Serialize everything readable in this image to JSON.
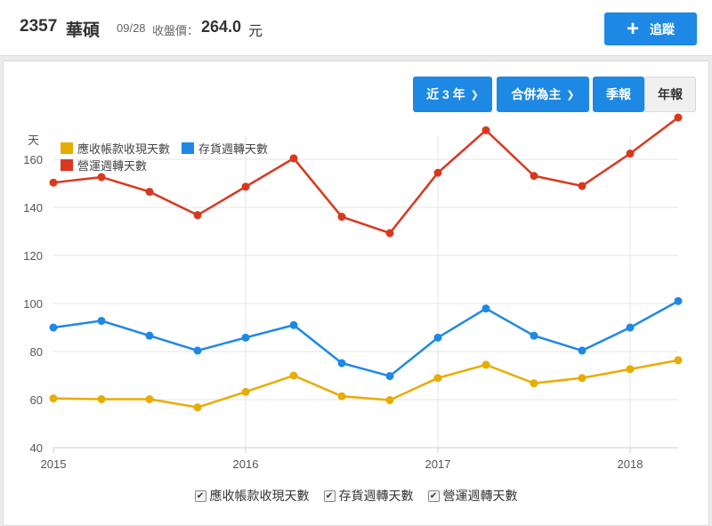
{
  "header": {
    "stock_id": "2357",
    "stock_name": "華碩",
    "close_date": "09/28",
    "close_label": "收盤價：",
    "close_price": "264.0",
    "close_unit": "元",
    "track_label": "追蹤",
    "track_icon": "plus-icon"
  },
  "controls": {
    "range_label": "近 3 年",
    "scope_label": "合併為主",
    "season_label": "季報",
    "year_label": "年報",
    "chevron_icon": "chevron-down-icon"
  },
  "colors": {
    "accent": "#1e88e5",
    "receivable": "#e8ac00",
    "inventory": "#1e88e5",
    "operating": "#d9381e"
  },
  "chart_data": {
    "type": "line",
    "ylabel": "天",
    "ylim": [
      40,
      170
    ],
    "yticks": [
      40,
      60,
      80,
      100,
      120,
      140,
      160
    ],
    "x_tick_labels": [
      "2015",
      "2016",
      "2017",
      "2018"
    ],
    "x": [
      "2015Q1",
      "2015Q2",
      "2015Q3",
      "2015Q4",
      "2016Q1",
      "2016Q2",
      "2016Q3",
      "2016Q4",
      "2017Q1",
      "2017Q2",
      "2017Q3",
      "2017Q4",
      "2018Q1",
      "2018Q2"
    ],
    "grid": true,
    "legend_position": "top-left",
    "series": [
      {
        "name": "應收帳款收現天數",
        "color": "#e8ac00",
        "values": [
          60.5,
          60.2,
          60.2,
          56.8,
          63.2,
          70.0,
          61.4,
          59.8,
          69.0,
          74.5,
          66.8,
          69.0,
          72.7,
          76.4
        ]
      },
      {
        "name": "存貨週轉天數",
        "color": "#1e88e5",
        "values": [
          90.0,
          92.8,
          86.6,
          80.4,
          85.8,
          91.0,
          75.2,
          69.8,
          85.8,
          97.9,
          86.6,
          80.4,
          90.0,
          101.0
        ]
      },
      {
        "name": "營運週轉天數",
        "color": "#d9381e",
        "values": [
          150.3,
          152.6,
          146.5,
          136.8,
          148.6,
          160.4,
          136.1,
          129.3,
          154.4,
          172.1,
          153.1,
          148.9,
          162.4,
          177.4
        ]
      }
    ]
  }
}
